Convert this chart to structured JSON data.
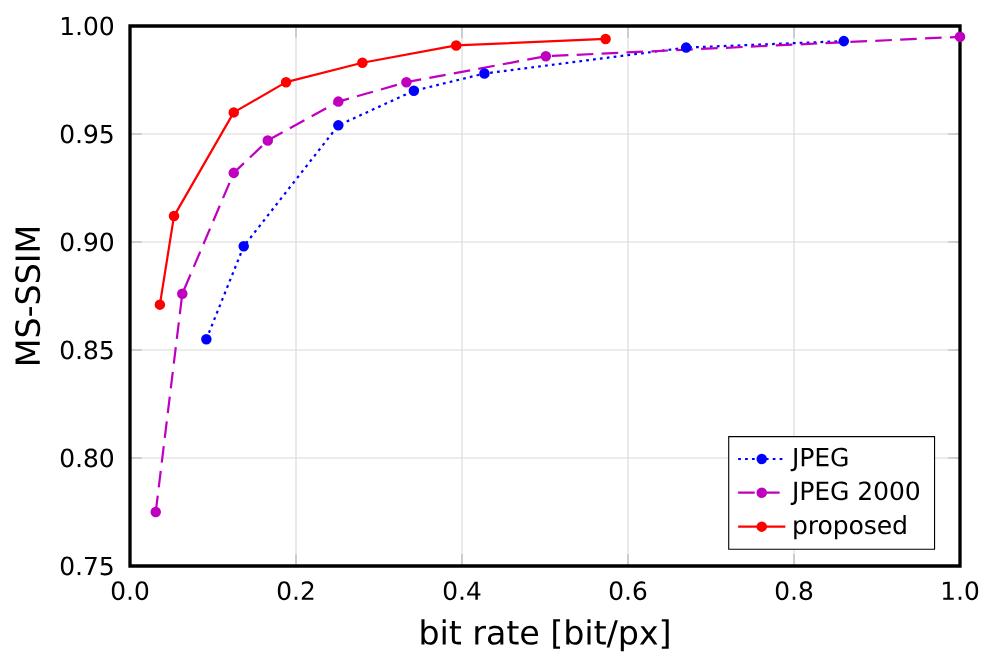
{
  "chart_data": {
    "type": "line",
    "xlabel": "bit rate [bit/px]",
    "ylabel": "MS-SSIM",
    "xlim": [
      0,
      1
    ],
    "ylim": [
      0.75,
      1.0
    ],
    "xticks": [
      {
        "value": 0,
        "label": "0.0"
      },
      {
        "value": 0.2,
        "label": "0.2"
      },
      {
        "value": 0.4,
        "label": "0.4"
      },
      {
        "value": 0.6,
        "label": "0.6"
      },
      {
        "value": 0.8,
        "label": "0.8"
      },
      {
        "value": 1,
        "label": "1.0"
      }
    ],
    "yticks": [
      {
        "value": 0.75,
        "label": "0.75"
      },
      {
        "value": 0.8,
        "label": "0.80"
      },
      {
        "value": 0.85,
        "label": "0.85"
      },
      {
        "value": 0.9,
        "label": "0.90"
      },
      {
        "value": 0.95,
        "label": "0.95"
      },
      {
        "value": 1.0,
        "label": "1.00"
      }
    ],
    "grid": true,
    "legend": "bottom right",
    "marker": "circle",
    "series": [
      {
        "name": "JPEG",
        "color": "#0000ff",
        "line_style": "dotted",
        "x": [
          0.092,
          0.137,
          0.251,
          0.342,
          0.427,
          0.67,
          0.86
        ],
        "values": [
          0.855,
          0.898,
          0.954,
          0.97,
          0.978,
          0.99,
          0.993
        ]
      },
      {
        "name": "JPEG 2000",
        "color": "#bf00bf",
        "line_style": "dashed",
        "x": [
          0.031,
          0.063,
          0.125,
          0.166,
          0.251,
          0.333,
          0.501,
          1.0
        ],
        "values": [
          0.775,
          0.876,
          0.932,
          0.947,
          0.965,
          0.974,
          0.986,
          0.995
        ]
      },
      {
        "name": "proposed",
        "color": "#ff0000",
        "line_style": "solid",
        "x": [
          0.036,
          0.053,
          0.125,
          0.188,
          0.28,
          0.393,
          0.573
        ],
        "values": [
          0.871,
          0.912,
          0.96,
          0.974,
          0.983,
          0.991,
          0.994
        ]
      }
    ]
  }
}
